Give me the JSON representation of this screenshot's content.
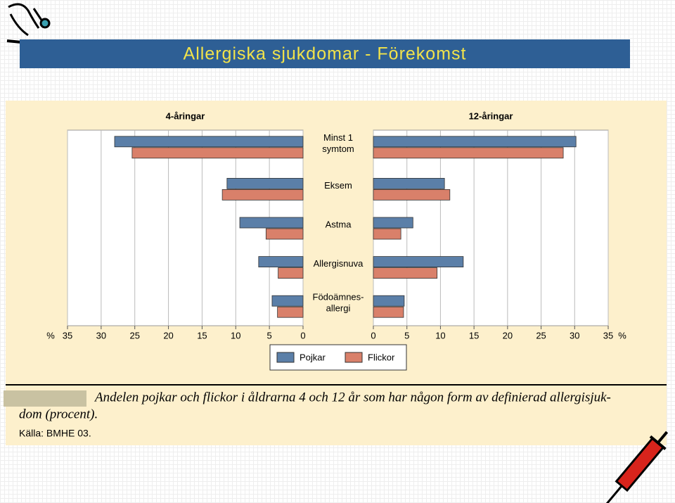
{
  "slide_title": "Allergiska sjukdomar - Förekomst",
  "chart_data": {
    "type": "bar",
    "orientation": "horizontal",
    "x_unit": "%",
    "categories": [
      [
        "Minst 1",
        "symtom"
      ],
      [
        "Eksem"
      ],
      [
        "Astma"
      ],
      [
        "Allergisnuva"
      ],
      [
        "Födoämnes-",
        "allergi"
      ]
    ],
    "series": [
      {
        "name": "Pojkar",
        "color": "#5b7fa8"
      },
      {
        "name": "Flickor",
        "color": "#d9806a"
      }
    ],
    "panels": [
      {
        "title": "4-åringar",
        "direction": "left",
        "xlim": [
          0,
          35
        ],
        "xticks": [
          0,
          5,
          10,
          15,
          20,
          25,
          30,
          35
        ],
        "grid": true,
        "values": [
          [
            28.0,
            11.3,
            9.4,
            6.6,
            4.6
          ],
          [
            25.4,
            12.0,
            5.5,
            3.7,
            3.8
          ]
        ]
      },
      {
        "title": "12-åringar",
        "direction": "right",
        "xlim": [
          0,
          35
        ],
        "xticks": [
          0,
          5,
          10,
          15,
          20,
          25,
          30,
          35
        ],
        "grid": true,
        "values": [
          [
            30.2,
            10.6,
            5.9,
            13.4,
            4.6
          ],
          [
            28.3,
            11.4,
            4.1,
            9.5,
            4.5
          ]
        ]
      }
    ],
    "caption": [
      "Andelen pojkar och flickor i åldrarna 4 och 12 år som har någon form av definierad allergisjuk-",
      "dom (procent)."
    ],
    "source": "Källa: BMHE 03."
  }
}
